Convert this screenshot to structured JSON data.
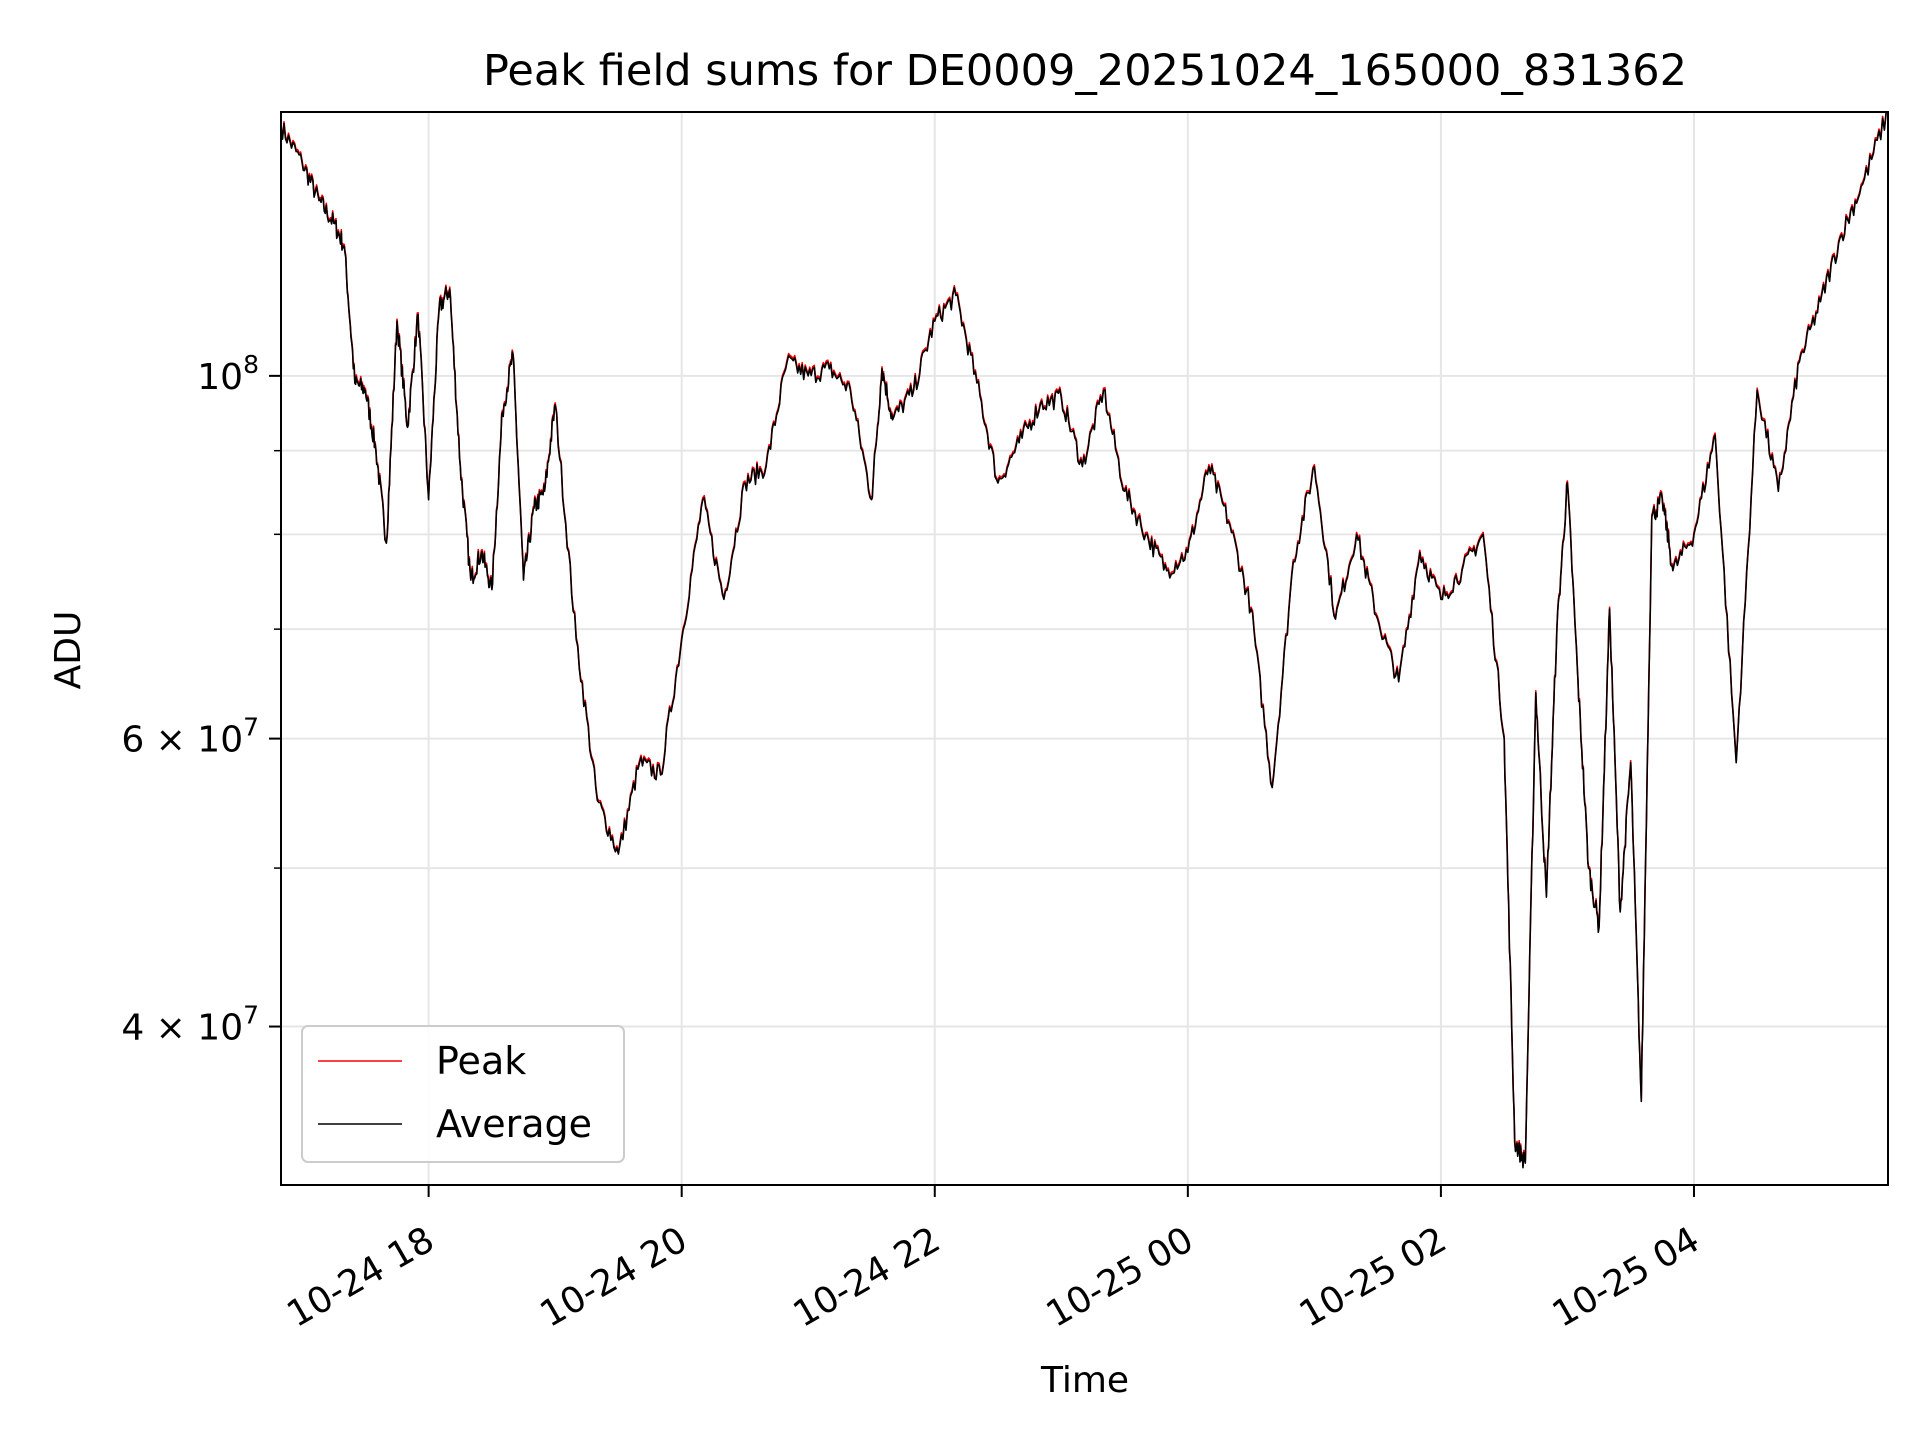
{
  "chart_data": {
    "type": "line",
    "title": "Peak field sums for DE0009_20251024_165000_831362",
    "xlabel": "Time",
    "ylabel": "ADU",
    "yscale": "log",
    "ylim": [
      32000000,
      145000000
    ],
    "xlim": [
      "2025-10-24 16:50",
      "2025-10-25 05:32"
    ],
    "x_ticks": [
      {
        "value": "2025-10-24 18:00",
        "label": "10-24 18"
      },
      {
        "value": "2025-10-24 20:00",
        "label": "10-24 20"
      },
      {
        "value": "2025-10-24 22:00",
        "label": "10-24 22"
      },
      {
        "value": "2025-10-25 00:00",
        "label": "10-25 00"
      },
      {
        "value": "2025-10-25 02:00",
        "label": "10-25 02"
      },
      {
        "value": "2025-10-25 04:00",
        "label": "10-25 04"
      }
    ],
    "y_ticks_major": [
      {
        "value": 100000000,
        "label": "10",
        "exp": "8"
      },
      {
        "value": 60000000,
        "label": "6 × 10",
        "exp": "7"
      },
      {
        "value": 40000000,
        "label": "4 × 10",
        "exp": "7"
      }
    ],
    "y_ticks_minor": [
      90000000,
      80000000,
      70000000,
      50000000
    ],
    "grid": true,
    "legend_position": "lower-left",
    "series": [
      {
        "name": "Peak",
        "color": "#ff0000"
      },
      {
        "name": "Average",
        "color": "#000000"
      }
    ],
    "x": [
      "2025-10-24 16:50",
      "2025-10-24 17:00",
      "2025-10-24 17:08",
      "2025-10-24 17:15",
      "2025-10-24 17:20",
      "2025-10-24 17:25",
      "2025-10-24 17:30",
      "2025-10-24 17:35",
      "2025-10-24 17:40",
      "2025-10-24 17:45",
      "2025-10-24 17:50",
      "2025-10-24 17:55",
      "2025-10-24 18:00",
      "2025-10-24 18:05",
      "2025-10-24 18:10",
      "2025-10-24 18:15",
      "2025-10-24 18:20",
      "2025-10-24 18:25",
      "2025-10-24 18:30",
      "2025-10-24 18:35",
      "2025-10-24 18:40",
      "2025-10-24 18:45",
      "2025-10-24 18:50",
      "2025-10-24 18:55",
      "2025-10-24 19:00",
      "2025-10-24 19:10",
      "2025-10-24 19:20",
      "2025-10-24 19:30",
      "2025-10-24 19:40",
      "2025-10-24 19:50",
      "2025-10-24 20:00",
      "2025-10-24 20:10",
      "2025-10-24 20:20",
      "2025-10-24 20:30",
      "2025-10-24 20:40",
      "2025-10-24 20:50",
      "2025-10-24 21:00",
      "2025-10-24 21:10",
      "2025-10-24 21:20",
      "2025-10-24 21:30",
      "2025-10-24 21:35",
      "2025-10-24 21:40",
      "2025-10-24 21:50",
      "2025-10-24 22:00",
      "2025-10-24 22:10",
      "2025-10-24 22:20",
      "2025-10-24 22:30",
      "2025-10-24 22:40",
      "2025-10-24 22:50",
      "2025-10-24 23:00",
      "2025-10-24 23:10",
      "2025-10-24 23:20",
      "2025-10-24 23:30",
      "2025-10-24 23:40",
      "2025-10-24 23:50",
      "2025-10-25 00:00",
      "2025-10-25 00:10",
      "2025-10-25 00:20",
      "2025-10-25 00:30",
      "2025-10-25 00:40",
      "2025-10-25 00:50",
      "2025-10-25 01:00",
      "2025-10-25 01:10",
      "2025-10-25 01:20",
      "2025-10-25 01:30",
      "2025-10-25 01:40",
      "2025-10-25 01:50",
      "2025-10-25 02:00",
      "2025-10-25 02:10",
      "2025-10-25 02:20",
      "2025-10-25 02:30",
      "2025-10-25 02:35",
      "2025-10-25 02:40",
      "2025-10-25 02:45",
      "2025-10-25 02:50",
      "2025-10-25 02:55",
      "2025-10-25 03:00",
      "2025-10-25 03:05",
      "2025-10-25 03:10",
      "2025-10-25 03:15",
      "2025-10-25 03:20",
      "2025-10-25 03:25",
      "2025-10-25 03:30",
      "2025-10-25 03:35",
      "2025-10-25 03:40",
      "2025-10-25 03:45",
      "2025-10-25 03:50",
      "2025-10-25 04:00",
      "2025-10-25 04:10",
      "2025-10-25 04:20",
      "2025-10-25 04:30",
      "2025-10-25 04:40",
      "2025-10-25 04:50",
      "2025-10-25 05:00",
      "2025-10-25 05:10",
      "2025-10-25 05:20",
      "2025-10-25 05:32"
    ],
    "values": [
      142000000,
      135000000,
      128000000,
      124000000,
      120000000,
      99000000,
      98000000,
      90000000,
      79000000,
      108000000,
      93000000,
      109000000,
      84000000,
      110000000,
      113000000,
      88000000,
      75000000,
      78000000,
      74000000,
      95000000,
      103000000,
      75000000,
      83000000,
      85000000,
      96000000,
      69000000,
      55000000,
      51000000,
      58000000,
      57000000,
      69000000,
      84000000,
      73000000,
      86000000,
      88000000,
      102000000,
      100000000,
      101000000,
      98000000,
      84000000,
      101000000,
      94000000,
      98000000,
      108000000,
      112000000,
      99000000,
      86000000,
      91000000,
      96000000,
      97000000,
      88000000,
      98000000,
      85000000,
      80000000,
      76000000,
      78000000,
      88000000,
      81000000,
      72000000,
      56000000,
      77000000,
      88000000,
      71000000,
      80000000,
      71000000,
      65000000,
      78000000,
      73000000,
      76000000,
      80000000,
      60000000,
      34000000,
      33000000,
      64000000,
      48000000,
      70000000,
      86000000,
      65000000,
      50000000,
      46000000,
      72000000,
      47000000,
      58000000,
      36000000,
      82000000,
      84000000,
      76000000,
      80000000,
      92000000,
      58000000,
      98000000,
      85000000,
      102000000,
      111000000,
      122000000,
      131000000,
      145000000
    ]
  }
}
